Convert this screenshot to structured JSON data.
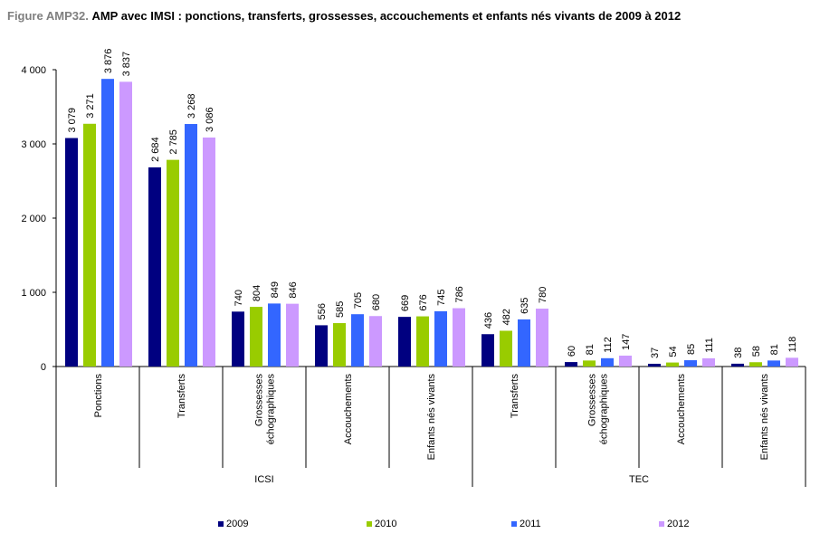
{
  "title": {
    "lead": "Figure AMP32.",
    "rest": "AMP avec IMSI : ponctions, transferts, grossesses, accouchements et enfants nés vivants de 2009 à 2012"
  },
  "colors": {
    "2009": "#000080",
    "2010": "#99cc00",
    "2011": "#3366ff",
    "2012": "#cc99ff"
  },
  "chart_data": {
    "type": "bar",
    "categories": [
      "Ponctions",
      "Transferts",
      "Grossesses échographiques",
      "Accouchements",
      "Enfants nés vivants",
      "Transferts",
      "Grossesses échographiques",
      "Accouchements",
      "Enfants nés vivants"
    ],
    "category_lines": [
      [
        "Ponctions"
      ],
      [
        "Transferts"
      ],
      [
        "Grossesses",
        "échographiques"
      ],
      [
        "Accouchements"
      ],
      [
        "Enfants nés vivants"
      ],
      [
        "Transferts"
      ],
      [
        "Grossesses",
        "échographiques"
      ],
      [
        "Accouchements"
      ],
      [
        "Enfants nés vivants"
      ]
    ],
    "groups": [
      {
        "label": "ICSI",
        "categories": [
          0,
          1,
          2,
          3,
          4
        ]
      },
      {
        "label": "TEC",
        "categories": [
          5,
          6,
          7,
          8
        ]
      }
    ],
    "series": [
      {
        "name": "2009",
        "values": [
          3079,
          2684,
          740,
          556,
          669,
          436,
          60,
          37,
          38
        ],
        "labels": [
          "3 079",
          "2 684",
          "740",
          "556",
          "669",
          "436",
          "60",
          "37",
          "38"
        ]
      },
      {
        "name": "2010",
        "values": [
          3271,
          2785,
          804,
          585,
          676,
          482,
          81,
          54,
          58
        ],
        "labels": [
          "3 271",
          "2 785",
          "804",
          "585",
          "676",
          "482",
          "81",
          "54",
          "58"
        ]
      },
      {
        "name": "2011",
        "values": [
          3876,
          3268,
          849,
          705,
          745,
          635,
          112,
          85,
          81
        ],
        "labels": [
          "3 876",
          "3 268",
          "849",
          "705",
          "745",
          "635",
          "112",
          "85",
          "81"
        ]
      },
      {
        "name": "2012",
        "values": [
          3837,
          3086,
          846,
          680,
          786,
          780,
          147,
          111,
          118
        ],
        "labels": [
          "3 837",
          "3 086",
          "846",
          "680",
          "786",
          "780",
          "147",
          "111",
          "118"
        ]
      }
    ],
    "yticks": [
      0,
      1000,
      2000,
      3000,
      4000
    ],
    "ytick_labels": [
      "0",
      "1 000",
      "2 000",
      "3 000",
      "4 000"
    ],
    "ylim": [
      0,
      4000
    ],
    "grid": false,
    "legend": "bottom"
  }
}
